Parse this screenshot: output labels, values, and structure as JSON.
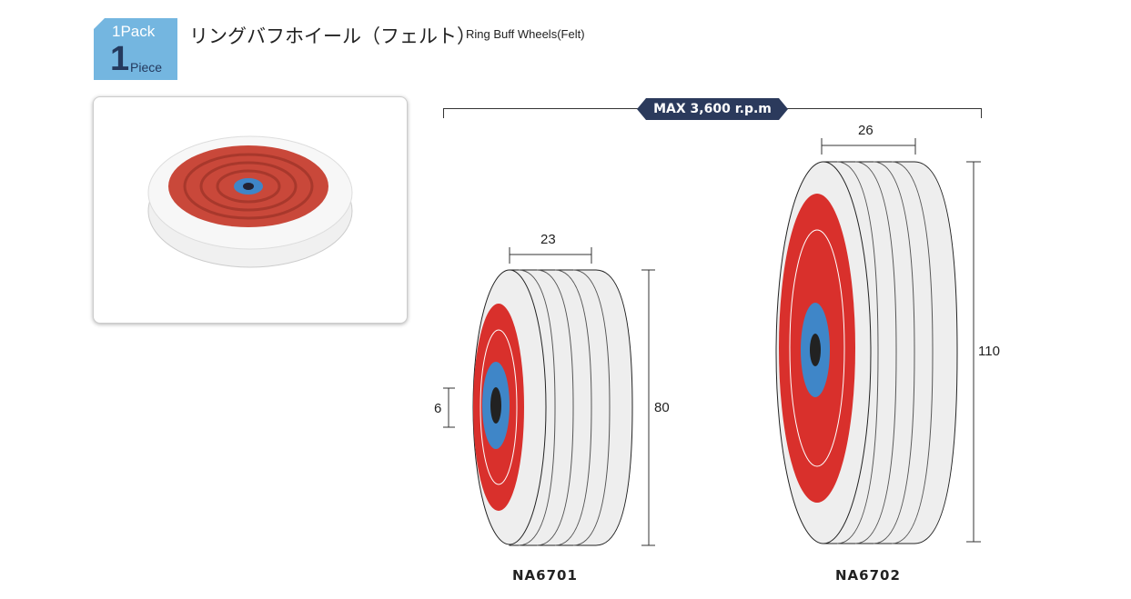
{
  "badge": {
    "pack": "1Pack",
    "count": "1",
    "unit": "Piece"
  },
  "header": {
    "title_ja": "リングバフホイール（フェルト）",
    "title_en": "Ring Buff Wheels(Felt)"
  },
  "speed": {
    "label": "MAX 3,600 r.p.m"
  },
  "products": [
    {
      "model": "NA6701",
      "width": "23",
      "diameter": "80",
      "bore": "6"
    },
    {
      "model": "NA6702",
      "width": "26",
      "diameter": "110"
    }
  ],
  "colors": {
    "badge": "#74b6e0",
    "felt": "#e8e8e8",
    "ring": "#d9302c",
    "hub": "#3f86c8",
    "rpm_label": "#2b3a5c"
  }
}
